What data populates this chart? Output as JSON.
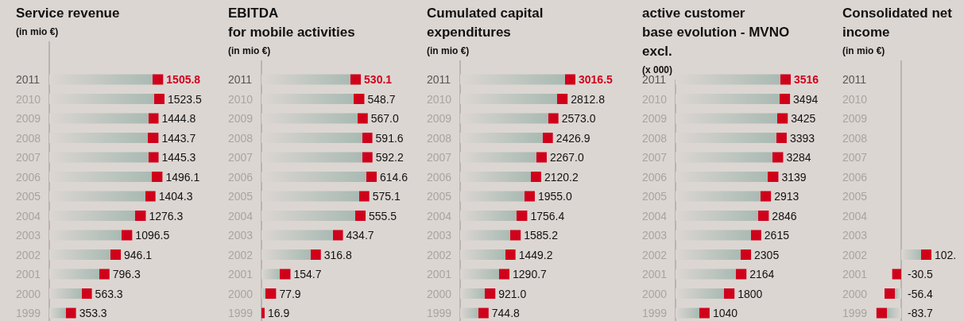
{
  "chart_data": [
    {
      "type": "bar",
      "orientation": "horizontal",
      "title": "Service revenue",
      "subtitle": "(in mio €)",
      "categories": [
        "2011",
        "2010",
        "2009",
        "2008",
        "2007",
        "2006",
        "2005",
        "2004",
        "2003",
        "2002",
        "2001",
        "2000",
        "1999"
      ],
      "values": [
        1505.8,
        1523.5,
        1444.8,
        1443.7,
        1445.3,
        1496.1,
        1404.3,
        1276.3,
        1096.5,
        946.1,
        796.3,
        563.3,
        353.3
      ],
      "color": "#d0021b",
      "data_labels": true
    },
    {
      "type": "bar",
      "orientation": "horizontal",
      "title": "EBITDA\nfor mobile activities",
      "subtitle": "(in mio €)",
      "categories": [
        "2011",
        "2010",
        "2009",
        "2008",
        "2007",
        "2006",
        "2005",
        "2004",
        "2003",
        "2002",
        "2001",
        "2000",
        "1999"
      ],
      "values": [
        530.1,
        548.7,
        567.0,
        591.6,
        592.2,
        614.6,
        575.1,
        555.5,
        434.7,
        316.8,
        154.7,
        77.9,
        16.9
      ],
      "value_labels": [
        "530.1",
        "548.7",
        "567.0",
        "591.6",
        "592.2",
        "614.6",
        "575.1",
        "555.5",
        "434.7",
        "316.8",
        "154.7",
        "77.9",
        "16.9"
      ],
      "color": "#d0021b"
    },
    {
      "type": "bar",
      "orientation": "horizontal",
      "title": "Cumulated capital\nexpenditures",
      "subtitle": "(in mio €)",
      "categories": [
        "2011",
        "2010",
        "2009",
        "2008",
        "2007",
        "2006",
        "2005",
        "2004",
        "2003",
        "2002",
        "2001",
        "2000",
        "1999"
      ],
      "values": [
        3016.5,
        2812.8,
        2573.0,
        2426.9,
        2267.0,
        2120.2,
        1955.0,
        1756.4,
        1585.2,
        1449.2,
        1290.7,
        921.0,
        744.8
      ],
      "value_labels": [
        "3016.5",
        "2812.8",
        "2573.0",
        "2426.9",
        "2267.0",
        "2120.2",
        "1955.0",
        "1756.4",
        "1585.2",
        "1449.2",
        "1290.7",
        "921.0",
        "744.8"
      ],
      "color": "#d0021b"
    },
    {
      "type": "bar",
      "orientation": "horizontal",
      "title": "active customer\nbase evolution - MVNO\nexcl.",
      "subtitle": "(x 000)",
      "categories": [
        "2011",
        "2010",
        "2009",
        "2008",
        "2007",
        "2006",
        "2005",
        "2004",
        "2003",
        "2002",
        "2001",
        "2000",
        "1999"
      ],
      "values": [
        3516,
        3494,
        3425,
        3393,
        3284,
        3139,
        2913,
        2846,
        2615,
        2305,
        2164,
        1800,
        1040
      ],
      "color": "#d0021b",
      "data_labels": true
    },
    {
      "type": "bar",
      "orientation": "horizontal",
      "title": "Consolidated net\nincome",
      "subtitle": "(in mio €)",
      "categories": [
        "2011",
        "2010",
        "2009",
        "2008",
        "2007",
        "2006",
        "2005",
        "2004",
        "2003",
        "2002",
        "2001",
        "2000",
        "1999"
      ],
      "values": [
        null,
        null,
        null,
        null,
        null,
        null,
        null,
        null,
        null,
        102,
        -30.5,
        -56.4,
        -83.7
      ],
      "value_labels": [
        null,
        null,
        null,
        null,
        null,
        null,
        null,
        null,
        null,
        "102.",
        "-30.5",
        "-56.4",
        "-83.7"
      ],
      "color": "#d0021b"
    }
  ]
}
